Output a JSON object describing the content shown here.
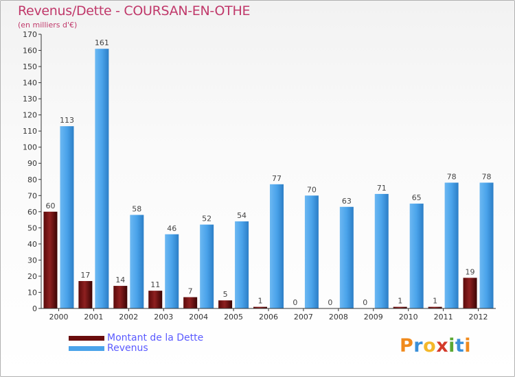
{
  "title": "Revenus/Dette - COURSAN-EN-OTHE",
  "subtitle": "(en milliers d'€)",
  "logo": {
    "letters": [
      "P",
      "r",
      "o",
      "x",
      "i",
      "t",
      "i"
    ],
    "colors": [
      "#f08a1c",
      "#3a8fd8",
      "#f4b82a",
      "#d43a2a",
      "#5aa832",
      "#3a8fd8",
      "#f08a1c"
    ]
  },
  "chart_data": {
    "type": "bar",
    "categories": [
      "2000",
      "2001",
      "2002",
      "2003",
      "2004",
      "2005",
      "2006",
      "2007",
      "2008",
      "2009",
      "2010",
      "2011",
      "2012"
    ],
    "series": [
      {
        "name": "Montant de la Dette",
        "color": "#7a1010",
        "values": [
          60,
          17,
          14,
          11,
          7,
          5,
          1,
          0,
          0,
          0,
          1,
          1,
          19
        ]
      },
      {
        "name": "Revenus",
        "color": "#4aa3ea",
        "values": [
          113,
          161,
          58,
          46,
          52,
          54,
          77,
          70,
          63,
          71,
          65,
          78,
          78
        ]
      }
    ],
    "ylim": [
      0,
      170
    ],
    "yticks": [
      0,
      10,
      20,
      30,
      40,
      50,
      60,
      70,
      80,
      90,
      100,
      110,
      120,
      130,
      140,
      150,
      160,
      170
    ],
    "grid": false,
    "legend": "bottom-left"
  }
}
